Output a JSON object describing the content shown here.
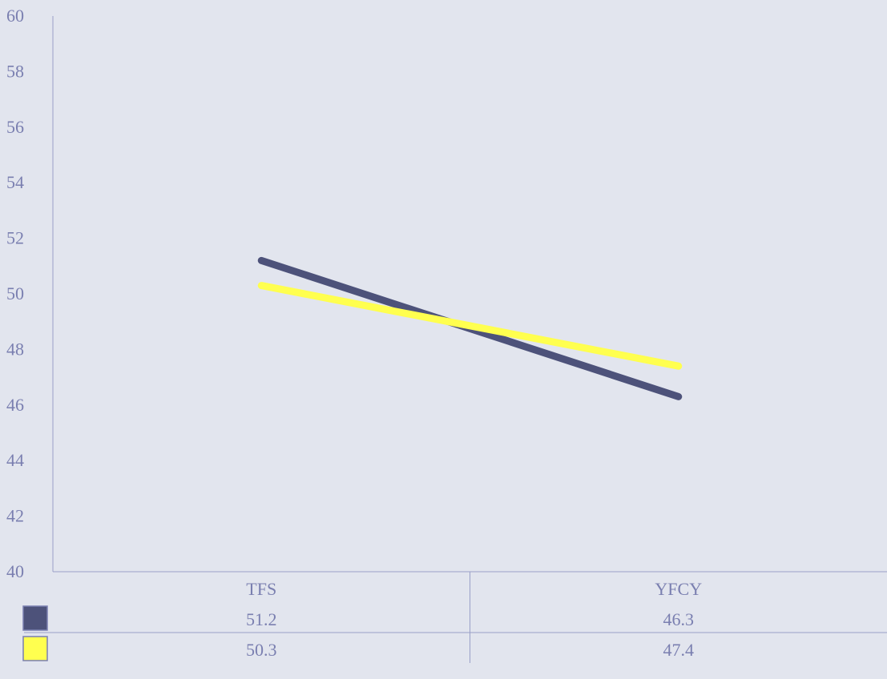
{
  "chart_data": {
    "type": "line",
    "categories": [
      "TFS",
      "YFCY"
    ],
    "series": [
      {
        "values": [
          51.2,
          46.3
        ],
        "color": "#4d527a"
      },
      {
        "values": [
          50.3,
          47.4
        ],
        "color": "#ffff4f"
      }
    ],
    "ylim": [
      40,
      60
    ],
    "yticks": [
      40,
      42,
      44,
      46,
      48,
      50,
      52,
      54,
      56,
      58,
      60
    ],
    "grid": false,
    "legend": "data-table-left",
    "axis_color": "#9aa0c8",
    "text_color": "#7a7fb0",
    "background": "#e2e5ee"
  }
}
